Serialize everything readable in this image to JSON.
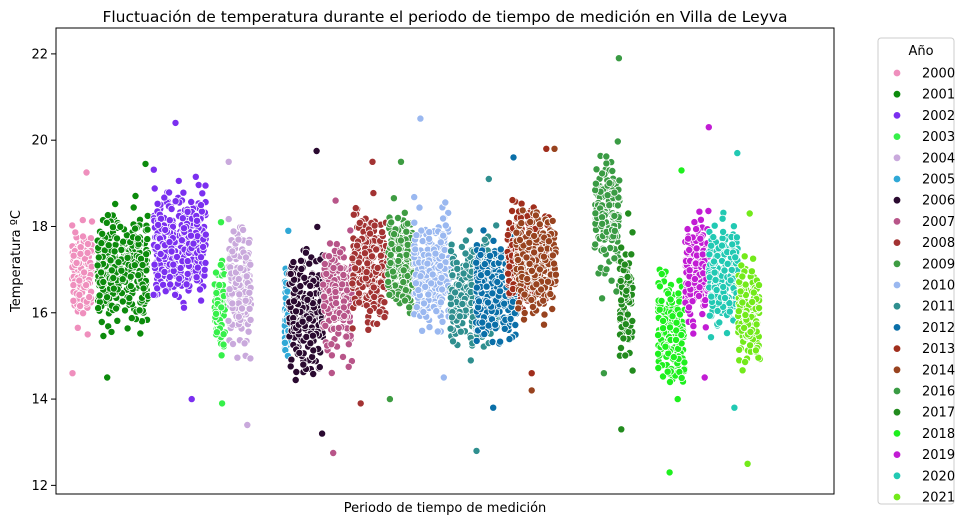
{
  "chart_data": {
    "type": "scatter",
    "title": "Fluctuación de temperatura durante el periodo de tiempo de medición en Villa de Leyva",
    "xlabel": "Periodo de tiempo de medición",
    "ylabel": "Temperatura ºC",
    "ylim": [
      11.8,
      22.6
    ],
    "yticks": [
      12,
      14,
      16,
      18,
      20,
      22
    ],
    "xticks_visible": false,
    "grid": false,
    "legend": {
      "title": "Año",
      "placement": "right-outside"
    },
    "series": [
      {
        "name": "2000",
        "color": "#ef8fbd",
        "x_range": [
          0.0,
          0.028
        ],
        "center": 16.9,
        "spread": 0.9,
        "min": 14.6,
        "max": 19.25
      },
      {
        "name": "2001",
        "color": "#0c8b0c",
        "x_range": [
          0.035,
          0.105
        ],
        "center": 17.0,
        "spread": 1.0,
        "min": 14.5,
        "max": 19.45
      },
      {
        "name": "2002",
        "color": "#7b2ff0",
        "x_range": [
          0.112,
          0.184
        ],
        "center": 17.6,
        "spread": 1.0,
        "min": 14.0,
        "max": 20.4
      },
      {
        "name": "2003",
        "color": "#36f04a",
        "x_range": [
          0.196,
          0.21
        ],
        "center": 16.2,
        "spread": 1.0,
        "min": 13.9,
        "max": 18.1
      },
      {
        "name": "2004",
        "color": "#c9a9dc",
        "x_range": [
          0.215,
          0.246
        ],
        "center": 16.6,
        "spread": 1.1,
        "min": 13.4,
        "max": 19.5
      },
      {
        "name": "2005",
        "color": "#2fa8d6",
        "x_range": [
          0.292,
          0.296
        ],
        "center": 16.0,
        "spread": 0.8,
        "min": 15.0,
        "max": 17.9
      },
      {
        "name": "2006",
        "color": "#2a0a30",
        "x_range": [
          0.298,
          0.345
        ],
        "center": 16.1,
        "spread": 1.1,
        "min": 13.2,
        "max": 19.75
      },
      {
        "name": "2007",
        "color": "#b85589",
        "x_range": [
          0.345,
          0.385
        ],
        "center": 16.3,
        "spread": 1.0,
        "min": 12.75,
        "max": 18.6
      },
      {
        "name": "2008",
        "color": "#a33333",
        "x_range": [
          0.385,
          0.434
        ],
        "center": 17.1,
        "spread": 1.0,
        "min": 13.9,
        "max": 19.5
      },
      {
        "name": "2009",
        "color": "#3e9c42",
        "x_range": [
          0.434,
          0.47
        ],
        "center": 17.2,
        "spread": 0.9,
        "min": 14.0,
        "max": 19.5
      },
      {
        "name": "2010",
        "color": "#9ab8f0",
        "x_range": [
          0.47,
          0.52
        ],
        "center": 17.0,
        "spread": 1.0,
        "min": 14.5,
        "max": 20.5
      },
      {
        "name": "2011",
        "color": "#2f8f8f",
        "x_range": [
          0.52,
          0.585
        ],
        "center": 16.5,
        "spread": 0.9,
        "min": 12.8,
        "max": 19.1
      },
      {
        "name": "2012",
        "color": "#0a6fa8",
        "x_range": [
          0.555,
          0.61
        ],
        "center": 16.5,
        "spread": 0.9,
        "min": 13.8,
        "max": 19.6
      },
      {
        "name": "2013",
        "color": "#a02e1c",
        "x_range": [
          0.598,
          0.655
        ],
        "center": 17.3,
        "spread": 0.9,
        "min": 14.6,
        "max": 19.8
      },
      {
        "name": "2014",
        "color": "#98431f",
        "x_range": [
          0.61,
          0.665
        ],
        "center": 17.2,
        "spread": 0.9,
        "min": 14.2,
        "max": 19.8
      },
      {
        "name": "2016",
        "color": "#3a9b44",
        "x_range": [
          0.718,
          0.752
        ],
        "center": 18.2,
        "spread": 1.1,
        "min": 14.6,
        "max": 21.9
      },
      {
        "name": "2017",
        "color": "#228b1e",
        "x_range": [
          0.752,
          0.77
        ],
        "center": 16.2,
        "spread": 1.0,
        "min": 13.3,
        "max": 18.3
      },
      {
        "name": "2018",
        "color": "#1ef01e",
        "x_range": [
          0.805,
          0.842
        ],
        "center": 15.6,
        "spread": 1.0,
        "min": 12.3,
        "max": 19.3
      },
      {
        "name": "2019",
        "color": "#c21cd4",
        "x_range": [
          0.842,
          0.875
        ],
        "center": 17.0,
        "spread": 1.0,
        "min": 14.5,
        "max": 20.3
      },
      {
        "name": "2020",
        "color": "#22c9b3",
        "x_range": [
          0.875,
          0.915
        ],
        "center": 16.9,
        "spread": 1.0,
        "min": 13.8,
        "max": 19.7
      },
      {
        "name": "2021",
        "color": "#73ea1a",
        "x_range": [
          0.915,
          0.945
        ],
        "center": 16.0,
        "spread": 1.0,
        "min": 12.5,
        "max": 18.3
      }
    ]
  }
}
